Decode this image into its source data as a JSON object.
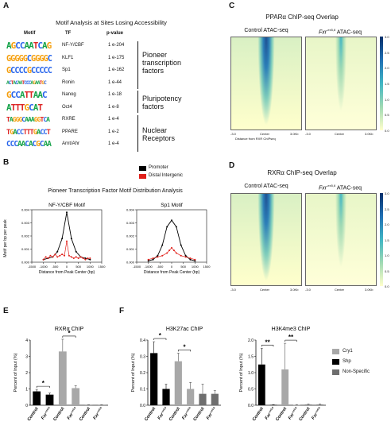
{
  "panels": {
    "A": {
      "letter": "A",
      "title": "Motif Analysis at Sites Losing Accessibility",
      "col_motif": "Motif",
      "col_tf": "TF",
      "col_p": "p-value",
      "rows": [
        {
          "logo": "AGCCAATCAG",
          "tf": "NF-Y/CBF",
          "p": "1 e-204"
        },
        {
          "logo": "GGGGGCGGGGC",
          "tf": "KLF1",
          "p": "1 e-175"
        },
        {
          "logo": "GCCCCGCCCCC",
          "tf": "Sp1",
          "p": "1 e-162"
        },
        {
          "logo": "ACTACAATCCCAGAATGC",
          "tf": "Ronin",
          "p": "1 e-44"
        },
        {
          "logo": "GCCATTAAC",
          "tf": "Nanog",
          "p": "1 e-18"
        },
        {
          "logo": "ATTTGCAT",
          "tf": "Oct4",
          "p": "1 e-8"
        },
        {
          "logo": "TAGGGCAAAGGTCA",
          "tf": "RXRE",
          "p": "1 e-4"
        },
        {
          "logo": "TGACCTTTGACCT",
          "tf": "PPARE",
          "p": "1 e-2"
        },
        {
          "logo": "CCCAACACGCAA",
          "tf": "Arnt/Ahr",
          "p": "1 e-4"
        }
      ],
      "groups": [
        {
          "label": "Pioneer transcription factors"
        },
        {
          "label": "Pluripotency factors"
        },
        {
          "label": "Nuclear Receptors"
        }
      ]
    },
    "B": {
      "letter": "B",
      "title": "Pioneer Transcription Factor Motif Distribution Analysis",
      "legend": [
        {
          "label": "Promoter",
          "color": "#000000"
        },
        {
          "label": "Distal Intergenic",
          "color": "#e0201b"
        }
      ],
      "ylabel": "Motif per bp per peak",
      "xlabel": "Distance from Peak Center (bp)"
    },
    "C": {
      "letter": "C",
      "title": "PPARα ChIP-seq Overlap",
      "left_label": "Control ATAC-seq",
      "right_label_prefix": "Fxr",
      "right_label_sup": "-ex5,6",
      "right_label_suffix": " ATAC-seq",
      "xlabel": "Distance from RXR ChIPseq",
      "ticks_left": [
        "-3.0",
        "Center",
        "3.0Kb"
      ],
      "ticks_right": [
        "-3.0",
        "Center",
        "3.0Kb"
      ],
      "colorbar": [
        "3.0",
        "2.5",
        "2.0",
        "1.5",
        "1.0",
        "0.5",
        "0.0"
      ]
    },
    "D": {
      "letter": "D",
      "title": "RXRα ChIP-seq Overlap",
      "left_label": "Control ATAC-seq",
      "right_label_prefix": "Fxr",
      "right_label_sup": "-ex5,6",
      "right_label_suffix": " ATAC-seq",
      "ticks_left": [
        "-3.0",
        "Center",
        "3.0Kb"
      ],
      "ticks_right": [
        "-3.0",
        "Center",
        "3.0Kb"
      ],
      "colorbar": [
        "3.0",
        "2.5",
        "2.0",
        "1.5",
        "1.0",
        "0.5",
        "0.0"
      ]
    },
    "E": {
      "letter": "E",
      "title": "RXRα ChIP"
    },
    "F": {
      "letter": "F",
      "title_left": "H3K27ac ChIP",
      "title_right": "H3K4me3 ChIP",
      "legend": [
        {
          "label": "Cry1",
          "color": "#a8a8a8"
        },
        {
          "label": "Shp",
          "color": "#000000"
        },
        {
          "label": "Non-Specific",
          "color": "#6e6e6e"
        }
      ]
    }
  },
  "chart_data": [
    {
      "type": "line",
      "title": "NF-Y/CBF Motif",
      "xlabel": "Distance from Peak Center (bp)",
      "ylabel": "Motif per bp per peak",
      "xlim": [
        -1500,
        1500
      ],
      "ylim": [
        0,
        0.004
      ],
      "xticks": [
        "-1500",
        "-1000",
        "-500",
        "0",
        "500",
        "1000",
        "1500"
      ],
      "yticks": [
        "0.000",
        "0.001",
        "0.002",
        "0.003",
        "0.004"
      ],
      "series": [
        {
          "name": "Promoter",
          "color": "#000000",
          "x": [
            -1000,
            -800,
            -600,
            -400,
            -200,
            0,
            200,
            400,
            600,
            800,
            1000
          ],
          "y": [
            0.0002,
            0.0003,
            0.0004,
            0.0008,
            0.0018,
            0.0038,
            0.0018,
            0.0008,
            0.0004,
            0.0003,
            0.0002
          ]
        },
        {
          "name": "Distal Intergenic",
          "color": "#e0201b",
          "x": [
            -1000,
            -900,
            -800,
            -700,
            -600,
            -500,
            -400,
            -300,
            -200,
            -100,
            0,
            100,
            200,
            300,
            400,
            500,
            600,
            700,
            800,
            900,
            1000
          ],
          "y": [
            0.0002,
            0.0004,
            0.0003,
            0.0005,
            0.0004,
            0.0006,
            0.0004,
            0.0005,
            0.0006,
            0.0005,
            0.0016,
            0.0005,
            0.0004,
            0.0003,
            0.0004,
            0.0003,
            0.0004,
            0.0003,
            0.0002,
            0.0003,
            0.0003
          ]
        }
      ]
    },
    {
      "type": "line",
      "title": "Sp1 Motif",
      "xlabel": "Distance from Peak Center (bp)",
      "xlim": [
        -1500,
        1500
      ],
      "ylim": [
        0,
        0.004
      ],
      "xticks": [
        "-1500",
        "-1000",
        "-500",
        "0",
        "500",
        "1000",
        "1500"
      ],
      "yticks": [
        "0.000",
        "0.001",
        "0.002",
        "0.003",
        "0.004"
      ],
      "series": [
        {
          "name": "Promoter",
          "color": "#000000",
          "x": [
            -1000,
            -800,
            -600,
            -400,
            -200,
            0,
            200,
            400,
            600,
            800,
            1000
          ],
          "y": [
            0.0001,
            0.0002,
            0.0005,
            0.0013,
            0.0027,
            0.0032,
            0.0027,
            0.0013,
            0.0005,
            0.0002,
            0.0001
          ]
        },
        {
          "name": "Distal Intergenic",
          "color": "#e0201b",
          "x": [
            -1000,
            -800,
            -600,
            -400,
            -200,
            -100,
            0,
            100,
            200,
            400,
            600,
            800,
            1000
          ],
          "y": [
            0.0002,
            0.0003,
            0.0004,
            0.0005,
            0.0007,
            0.0009,
            0.0011,
            0.0009,
            0.0007,
            0.0005,
            0.0004,
            0.0003,
            0.0002
          ]
        }
      ]
    },
    {
      "type": "bar",
      "title": "RXRα ChIP",
      "ylabel": "Percent of Input (%)",
      "ylim": [
        0,
        4
      ],
      "yticks": [
        "0",
        "1",
        "2",
        "3",
        "4"
      ],
      "categories": [
        "Control",
        "Fxr-ex5,6",
        "Control",
        "Fxr-ex5,6",
        "Control",
        "Fxr-ex5,6"
      ],
      "tick_labels": [
        {
          "prefix": "Control",
          "sup": ""
        },
        {
          "prefix": "Fxr",
          "sup": "-ex5,6"
        },
        {
          "prefix": "Control",
          "sup": ""
        },
        {
          "prefix": "Fxr",
          "sup": "-ex5,6"
        },
        {
          "prefix": "Control",
          "sup": ""
        },
        {
          "prefix": "Fxr",
          "sup": "-ex5,6"
        }
      ],
      "values": [
        0.85,
        0.65,
        3.3,
        1.05,
        0.02,
        0.02
      ],
      "errors": [
        0.12,
        0.1,
        0.75,
        0.15,
        0.01,
        0.01
      ],
      "colors": [
        "#000000",
        "#000000",
        "#a8a8a8",
        "#a8a8a8",
        "#6e6e6e",
        "#6e6e6e"
      ],
      "significance": [
        {
          "pair": [
            0,
            1
          ],
          "label": "*"
        },
        {
          "pair": [
            2,
            3
          ],
          "label": "*"
        }
      ]
    },
    {
      "type": "bar",
      "title": "H3K27ac ChIP",
      "ylabel": "Percent of Input (%)",
      "ylim": [
        0,
        0.4
      ],
      "yticks": [
        "0.0",
        "0.1",
        "0.2",
        "0.3",
        "0.4"
      ],
      "categories": [
        "Control",
        "Fxr-ex5,6",
        "Control",
        "Fxr-ex5,6",
        "Control",
        "Fxr-ex5,6"
      ],
      "tick_labels": [
        {
          "prefix": "Control",
          "sup": ""
        },
        {
          "prefix": "Fxr",
          "sup": "-ex5,6"
        },
        {
          "prefix": "Control",
          "sup": ""
        },
        {
          "prefix": "Fxr",
          "sup": "-ex5,6"
        },
        {
          "prefix": "Control",
          "sup": ""
        },
        {
          "prefix": "Fxr",
          "sup": "-ex5,6"
        }
      ],
      "values": [
        0.32,
        0.1,
        0.27,
        0.1,
        0.07,
        0.07
      ],
      "errors": [
        0.07,
        0.03,
        0.05,
        0.04,
        0.06,
        0.02
      ],
      "colors": [
        "#000000",
        "#000000",
        "#a8a8a8",
        "#a8a8a8",
        "#6e6e6e",
        "#6e6e6e"
      ],
      "significance": [
        {
          "pair": [
            0,
            1
          ],
          "label": "*"
        },
        {
          "pair": [
            2,
            3
          ],
          "label": "*"
        }
      ]
    },
    {
      "type": "bar",
      "title": "H3K4me3 ChIP",
      "ylabel": "Percent of Input (%)",
      "ylim": [
        0,
        2
      ],
      "yticks": [
        "0.0",
        "0.5",
        "1.0",
        "1.5",
        "2.0"
      ],
      "categories": [
        "Control",
        "Fxr-ex5,6",
        "Control",
        "Fxr-ex5,6",
        "Control",
        "Fxr-ex5,6"
      ],
      "tick_labels": [
        {
          "prefix": "Control",
          "sup": ""
        },
        {
          "prefix": "Fxr",
          "sup": "-ex5,6"
        },
        {
          "prefix": "Control",
          "sup": ""
        },
        {
          "prefix": "Fxr",
          "sup": "-ex5,6"
        },
        {
          "prefix": "Control",
          "sup": ""
        },
        {
          "prefix": "Fxr",
          "sup": "-ex5,6"
        }
      ],
      "values": [
        1.25,
        0.01,
        1.1,
        0.01,
        0.02,
        0.02
      ],
      "errors": [
        0.5,
        0.01,
        0.8,
        0.01,
        0.02,
        0.02
      ],
      "colors": [
        "#000000",
        "#000000",
        "#a8a8a8",
        "#a8a8a8",
        "#6e6e6e",
        "#6e6e6e"
      ],
      "significance": [
        {
          "pair": [
            0,
            1
          ],
          "label": "**"
        },
        {
          "pair": [
            2,
            3
          ],
          "label": "**"
        }
      ]
    }
  ]
}
